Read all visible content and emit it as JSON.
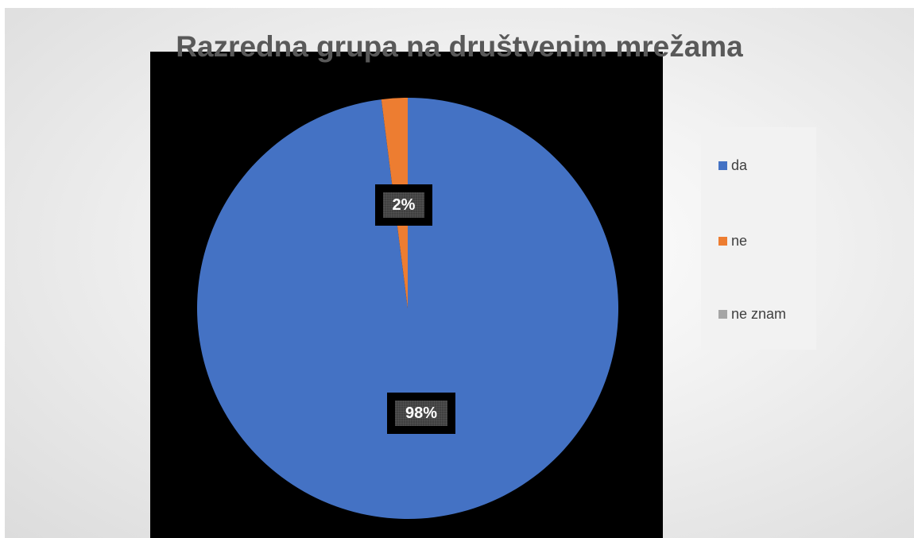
{
  "chart_data": {
    "type": "pie",
    "title": "Razredna grupa na društvenim mrežama",
    "categories": [
      "da",
      "ne",
      "ne znam"
    ],
    "values": [
      98,
      2,
      0
    ],
    "data_labels": [
      "98%",
      "2%",
      ""
    ],
    "colors": [
      "#4472C4",
      "#ED7D31",
      "#A5A5A5"
    ],
    "legend_position": "right"
  }
}
